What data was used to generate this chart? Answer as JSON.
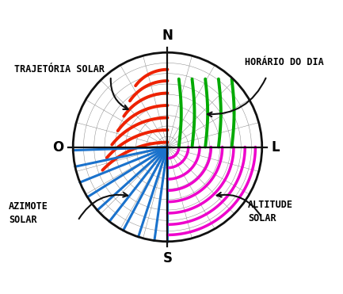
{
  "bg_color": "#ffffff",
  "circle_color": "#111111",
  "R": 1.0,
  "red_lines": {
    "color": "#ee2200",
    "lw": 2.8,
    "y_centers": [
      0.05,
      0.18,
      0.31,
      0.44,
      0.57,
      0.7,
      0.82
    ],
    "arc_radii": [
      0.95,
      0.85,
      0.75,
      0.65,
      0.56,
      0.48,
      0.42
    ]
  },
  "blue_lines": {
    "color": "#1a72cc",
    "lw": 2.2,
    "angles_deg": [
      182,
      192,
      202,
      212,
      222,
      232,
      242,
      252,
      262,
      270
    ]
  },
  "magenta_lines": {
    "color": "#ee00cc",
    "lw": 2.5,
    "radii": [
      0.12,
      0.22,
      0.34,
      0.46,
      0.58,
      0.7,
      0.82,
      0.93
    ]
  },
  "green_lines": {
    "color": "#00aa00",
    "lw": 2.8,
    "x_positions": [
      0.12,
      0.26,
      0.4,
      0.54,
      0.68
    ],
    "y_range": [
      0.0,
      0.72
    ]
  },
  "grid_color": "#888888",
  "grid_lw": 0.35,
  "grid_n_radial": 24,
  "grid_n_concentric": 9,
  "compass_fs": 12,
  "label_fs": 8.5,
  "label_trajetoria": "TRAJETÓRIA SOLAR",
  "label_horario": "HORÁRIO DO DIA",
  "label_azimote": "AZIMOTE\nSOLAR",
  "label_altitude": "ALTITUDE\nSOLAR",
  "xlim": [
    -1.75,
    1.75
  ],
  "ylim": [
    -1.5,
    1.5
  ]
}
